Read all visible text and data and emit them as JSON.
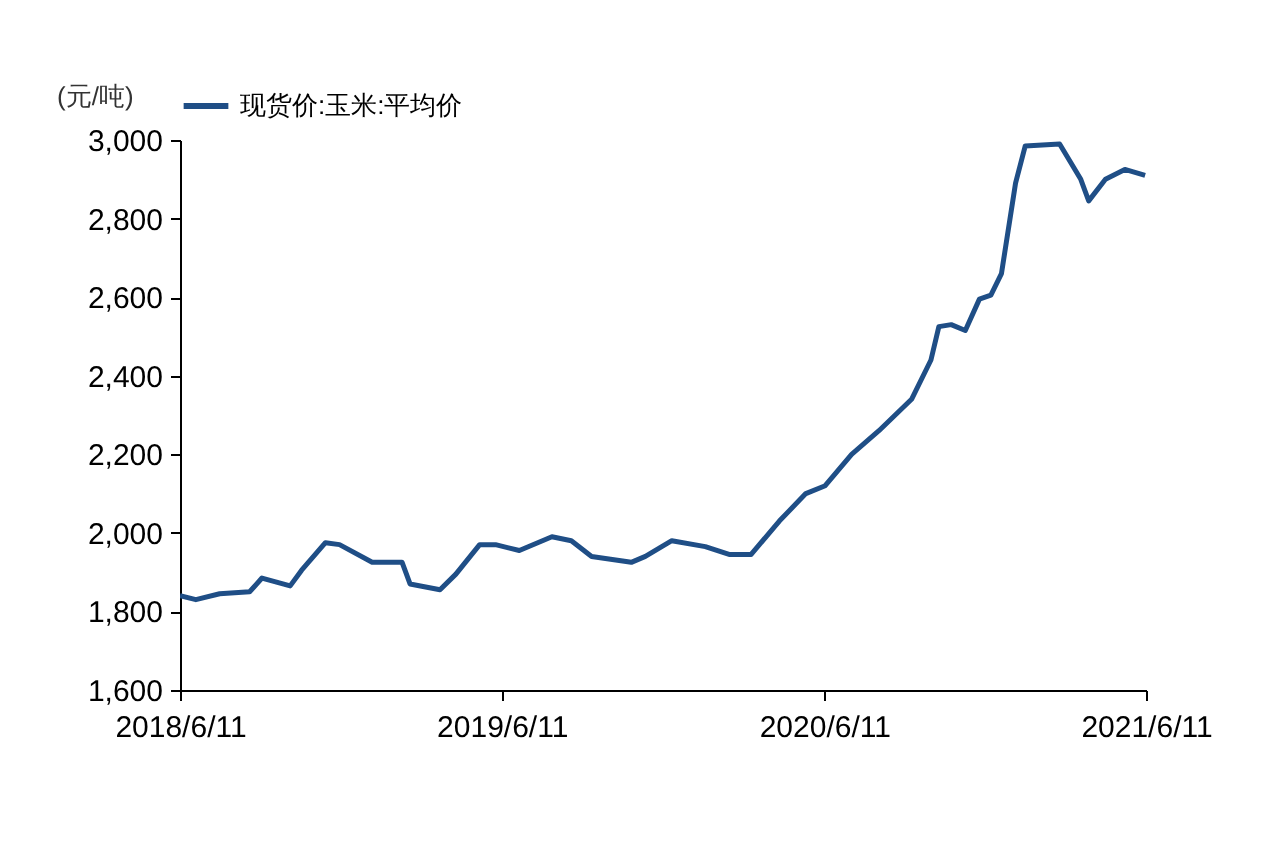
{
  "chart_data": {
    "type": "line",
    "ylabel": "(元/吨)",
    "legend": "top",
    "x": [
      "2018-06-11",
      "2018-06-29",
      "2018-07-26",
      "2018-08-29",
      "2018-09-12",
      "2018-10-14",
      "2018-10-27",
      "2018-11-23",
      "2018-12-09",
      "2019-01-15",
      "2019-02-18",
      "2019-02-27",
      "2019-04-02",
      "2019-04-20",
      "2019-05-17",
      "2019-06-04",
      "2019-07-01",
      "2019-08-07",
      "2019-08-29",
      "2019-09-21",
      "2019-11-05",
      "2019-11-21",
      "2019-12-21",
      "2020-01-28",
      "2020-02-24",
      "2020-03-20",
      "2020-04-21",
      "2020-05-21",
      "2020-06-12",
      "2020-07-12",
      "2020-08-12",
      "2020-09-18",
      "2020-10-10",
      "2020-10-19",
      "2020-11-02",
      "2020-11-18",
      "2020-12-04",
      "2020-12-17",
      "2020-12-29",
      "2021-01-14",
      "2021-01-25",
      "2021-03-05",
      "2021-03-29",
      "2021-04-07",
      "2021-04-26",
      "2021-05-18",
      "2021-06-10"
    ],
    "series": [
      {
        "name": "现货价:玉米:平均价",
        "color": "#1f4e86",
        "values": [
          1840,
          1830,
          1845,
          1850,
          1885,
          1865,
          1905,
          1975,
          1970,
          1925,
          1925,
          1870,
          1855,
          1895,
          1970,
          1970,
          1955,
          1990,
          1980,
          1940,
          1925,
          1940,
          1980,
          1965,
          1945,
          1945,
          2030,
          2100,
          2120,
          2200,
          2260,
          2340,
          2440,
          2525,
          2530,
          2515,
          2595,
          2605,
          2660,
          2890,
          2985,
          2990,
          2900,
          2845,
          2900,
          2925,
          2910
        ]
      }
    ],
    "xlim": [
      "2018-06-11",
      "2021-06-11"
    ],
    "xticks": [
      {
        "value": "2018-06-11",
        "label": "2018/6/11"
      },
      {
        "value": "2019-06-11",
        "label": "2019/6/11"
      },
      {
        "value": "2020-06-11",
        "label": "2020/6/11"
      },
      {
        "value": "2021-06-11",
        "label": "2021/6/11"
      }
    ],
    "ylim": [
      1600,
      3000
    ],
    "yticks": [
      {
        "value": 1600,
        "label": "1,600"
      },
      {
        "value": 1800,
        "label": "1,800"
      },
      {
        "value": 2000,
        "label": "2,000"
      },
      {
        "value": 2200,
        "label": "2,200"
      },
      {
        "value": 2400,
        "label": "2,400"
      },
      {
        "value": 2600,
        "label": "2,600"
      },
      {
        "value": 2800,
        "label": "2,800"
      },
      {
        "value": 3000,
        "label": "3,000"
      }
    ],
    "grid": false,
    "line_style": "solid",
    "marker": "none"
  }
}
